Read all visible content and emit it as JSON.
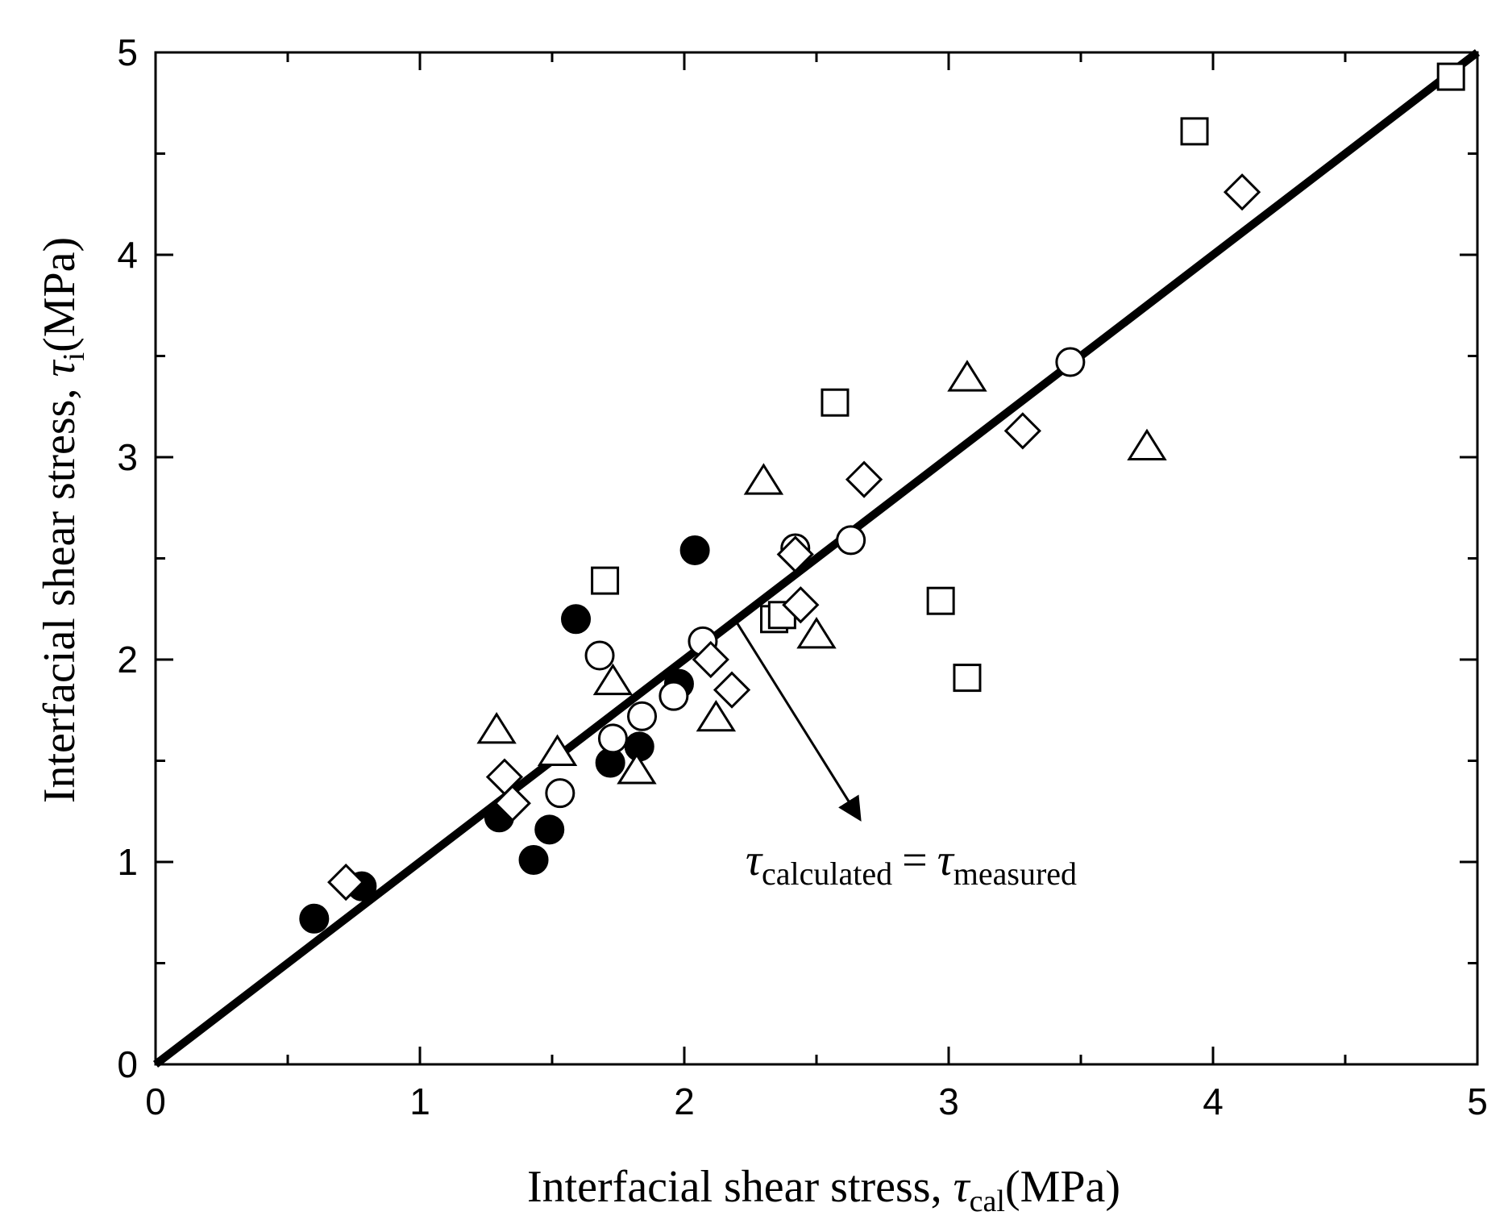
{
  "chart_data": {
    "type": "scatter",
    "xlabel": {
      "prefix": "Interfacial shear stress, ",
      "symbol": "τ",
      "sub": "cal",
      "suffix": "(MPa)"
    },
    "ylabel": {
      "prefix": "Interfacial shear stress, ",
      "symbol": "τ",
      "sub": "i",
      "suffix": "(MPa)"
    },
    "xlim": [
      0,
      5
    ],
    "ylim": [
      0,
      5
    ],
    "xticks": [
      "0",
      "1",
      "2",
      "3",
      "4",
      "5"
    ],
    "yticks": [
      "0",
      "1",
      "2",
      "3",
      "4",
      "5"
    ],
    "minor_step": 0.5,
    "reference_line": {
      "x": [
        0,
        5
      ],
      "y": [
        0,
        5
      ]
    },
    "annotation": {
      "symbol": "τ",
      "sub1": "calculated",
      "equals": "=",
      "sub2": "measured",
      "arrow_from": [
        2.2,
        2.18
      ],
      "arrow_to": [
        2.66,
        1.22
      ]
    },
    "series": [
      {
        "name": "filled-circle",
        "marker": "circle-filled",
        "x": [
          0.6,
          0.78,
          1.3,
          1.43,
          1.49,
          1.59,
          1.72,
          1.83,
          2.04,
          1.98
        ],
        "y": [
          0.72,
          0.88,
          1.22,
          1.01,
          1.16,
          2.2,
          1.49,
          1.57,
          2.54,
          1.88
        ]
      },
      {
        "name": "open-circle",
        "marker": "circle-open",
        "x": [
          1.53,
          1.68,
          1.73,
          1.84,
          1.96,
          2.07,
          2.42,
          2.63,
          3.46
        ],
        "y": [
          1.34,
          2.02,
          1.61,
          1.72,
          1.82,
          2.09,
          2.55,
          2.59,
          3.47
        ]
      },
      {
        "name": "open-square",
        "marker": "square-open",
        "x": [
          1.7,
          2.34,
          2.37,
          2.57,
          2.97,
          3.07,
          3.93,
          4.9
        ],
        "y": [
          2.39,
          2.2,
          2.22,
          3.27,
          2.29,
          1.91,
          4.61,
          4.88
        ]
      },
      {
        "name": "open-triangle",
        "marker": "triangle-open",
        "x": [
          1.29,
          1.52,
          1.73,
          1.82,
          2.12,
          2.3,
          2.5,
          3.07,
          3.75
        ],
        "y": [
          1.65,
          1.54,
          1.89,
          1.45,
          1.71,
          2.88,
          2.12,
          3.39,
          3.05
        ]
      },
      {
        "name": "open-diamond",
        "marker": "diamond-open",
        "x": [
          0.72,
          1.32,
          1.35,
          2.1,
          2.18,
          2.42,
          2.44,
          2.68,
          3.28,
          4.11
        ],
        "y": [
          0.9,
          1.42,
          1.29,
          2.0,
          1.85,
          2.52,
          2.27,
          2.89,
          3.13,
          4.31
        ]
      }
    ]
  }
}
